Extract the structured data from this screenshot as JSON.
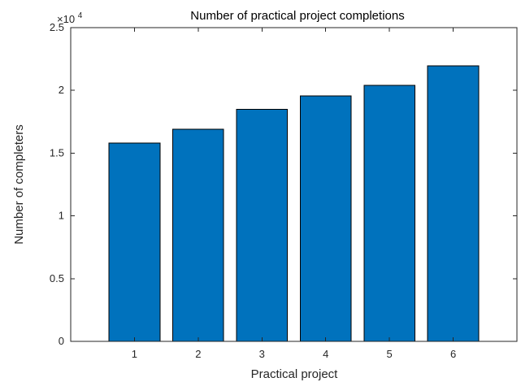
{
  "chart_data": {
    "type": "bar",
    "title": "Number of practical project completions",
    "xlabel": "Practical project",
    "ylabel": "Number of completers",
    "categories": [
      "1",
      "2",
      "3",
      "4",
      "5",
      "6"
    ],
    "values": [
      15800,
      16900,
      18500,
      19550,
      20400,
      21950
    ],
    "ylim": [
      0,
      25000
    ],
    "yticks": [
      0,
      5000,
      10000,
      15000,
      20000,
      25000
    ],
    "ytick_labels": [
      "0",
      "0.5",
      "1",
      "1.5",
      "2",
      "2.5"
    ],
    "y_exponent_label": "×10",
    "y_exponent_power": "4",
    "grid": false,
    "legend": "none",
    "bar_color": "#0072BD",
    "bar_edge_color": "#000000"
  }
}
